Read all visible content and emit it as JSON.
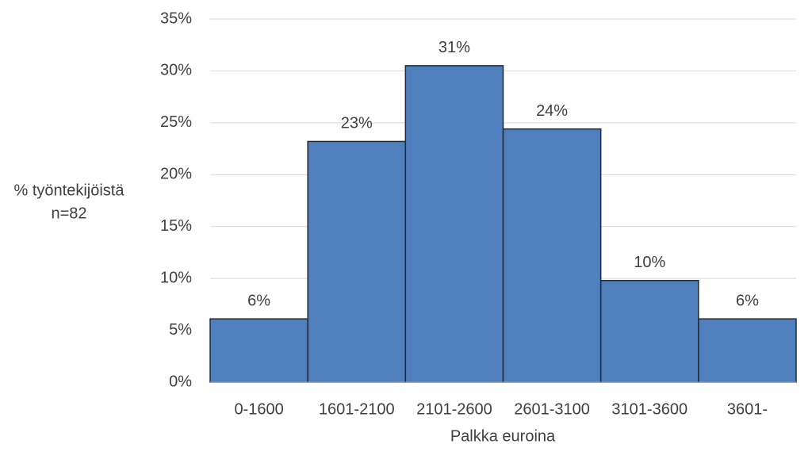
{
  "chart_data": {
    "type": "bar",
    "categories": [
      "0-1600",
      "1601-2100",
      "2101-2600",
      "2601-3100",
      "3101-3600",
      "3601-"
    ],
    "values": [
      6.1,
      23.2,
      30.5,
      24.4,
      9.8,
      6.1
    ],
    "value_labels": [
      "6%",
      "23%",
      "31%",
      "24%",
      "10%",
      "6%"
    ],
    "color": "#4f7fbc",
    "x_label": "Palkka euroina",
    "y_label": [
      "% työntekijöistä",
      "n=82"
    ],
    "ylim": [
      0,
      35
    ],
    "yticks": [
      {
        "value": 0,
        "label": "0%"
      },
      {
        "value": 5,
        "label": "5%"
      },
      {
        "value": 10,
        "label": "10%"
      },
      {
        "value": 15,
        "label": "15%"
      },
      {
        "value": 20,
        "label": "20%"
      },
      {
        "value": 25,
        "label": "25%"
      },
      {
        "value": 30,
        "label": "30%"
      },
      {
        "value": 35,
        "label": "35%"
      }
    ],
    "grid": true
  }
}
